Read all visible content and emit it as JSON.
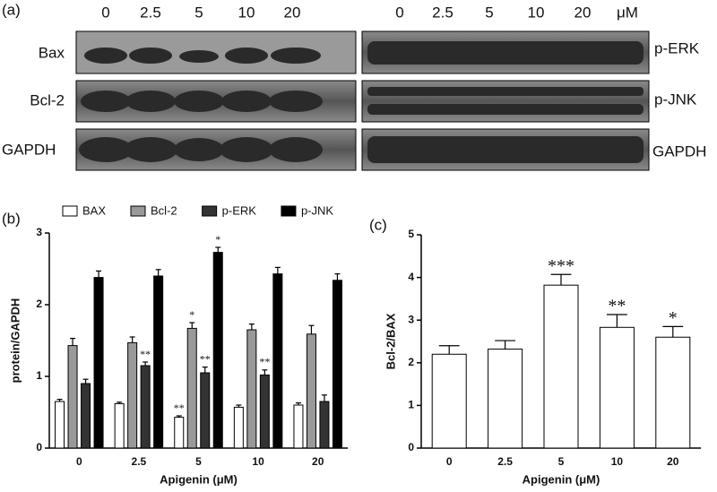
{
  "blot": {
    "panel_label": "(a)",
    "doses": [
      "0",
      "2.5",
      "5",
      "10",
      "20"
    ],
    "unit": "μM",
    "left_labels": [
      "Bax",
      "Bcl-2",
      "GAPDH"
    ],
    "right_labels": [
      "p-ERK",
      "p-JNK",
      "GAPDH"
    ]
  },
  "chart_data": [
    {
      "type": "bar",
      "panel_label": "(b)",
      "xlabel": "Apigenin (μM)",
      "ylabel": "protein/GAPDH",
      "categories": [
        "0",
        "2.5",
        "5",
        "10",
        "20"
      ],
      "series": [
        {
          "name": "BAX",
          "color": "#ffffff",
          "values": [
            0.65,
            0.62,
            0.43,
            0.57,
            0.6
          ],
          "errors": [
            0.03,
            0.02,
            0.02,
            0.03,
            0.03
          ],
          "annotations": [
            null,
            null,
            "**",
            null,
            null
          ]
        },
        {
          "name": "Bcl-2",
          "color": "#999999",
          "values": [
            1.43,
            1.47,
            1.67,
            1.65,
            1.59
          ],
          "errors": [
            0.1,
            0.08,
            0.08,
            0.08,
            0.12
          ],
          "annotations": [
            null,
            null,
            "*",
            null,
            null
          ]
        },
        {
          "name": "p-ERK",
          "color": "#333333",
          "values": [
            0.9,
            1.15,
            1.05,
            1.02,
            0.65
          ],
          "errors": [
            0.06,
            0.05,
            0.08,
            0.07,
            0.09
          ],
          "annotations": [
            null,
            "**",
            "**",
            "**",
            null
          ]
        },
        {
          "name": "p-JNK",
          "color": "#000000",
          "values": [
            2.38,
            2.4,
            2.73,
            2.43,
            2.34
          ],
          "errors": [
            0.09,
            0.09,
            0.07,
            0.09,
            0.09
          ],
          "annotations": [
            null,
            null,
            "*",
            null,
            null
          ]
        }
      ],
      "ylim": [
        0,
        3
      ],
      "yticks": [
        0,
        1,
        2,
        3
      ],
      "legend": "top"
    },
    {
      "type": "bar",
      "panel_label": "(c)",
      "xlabel": "Apigenin (μM)",
      "ylabel": "Bcl-2/BAX",
      "categories": [
        "0",
        "2.5",
        "5",
        "10",
        "20"
      ],
      "series": [
        {
          "color": "#ffffff",
          "values": [
            2.2,
            2.32,
            3.82,
            2.83,
            2.6
          ],
          "errors": [
            0.2,
            0.2,
            0.25,
            0.3,
            0.25
          ],
          "annotations": [
            null,
            null,
            "***",
            "**",
            "*"
          ]
        }
      ],
      "ylim": [
        0,
        5
      ],
      "yticks": [
        0,
        1,
        2,
        3,
        4,
        5
      ]
    }
  ]
}
